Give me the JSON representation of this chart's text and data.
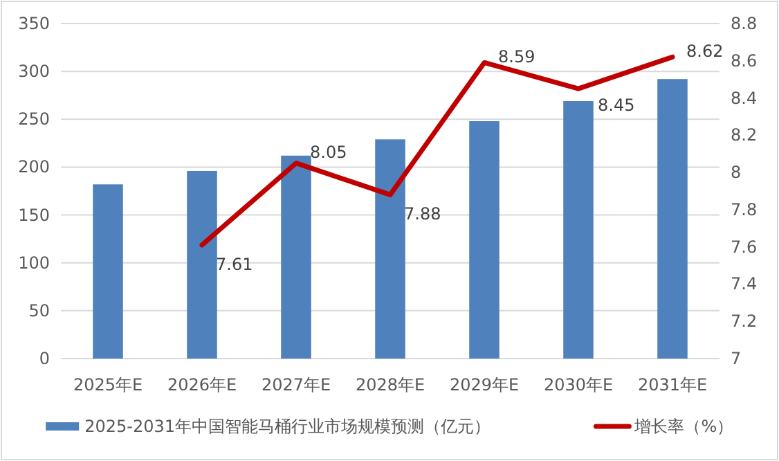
{
  "chart_data": {
    "type": "bar",
    "categories": [
      "2025年E",
      "2026年E",
      "2027年E",
      "2028年E",
      "2029年E",
      "2030年E",
      "2031年E"
    ],
    "series": [
      {
        "name": "2025-2031年中国智能马桶行业市场规模预测（亿元）",
        "color": "#4f81bd",
        "values": [
          182,
          196,
          212,
          229,
          248,
          269,
          292
        ]
      },
      {
        "name": "增长率（%）",
        "type": "line",
        "axis": "y2",
        "color": "#c00000",
        "values": [
          null,
          7.61,
          8.05,
          7.88,
          8.59,
          8.45,
          8.62
        ],
        "value_labels": [
          null,
          "7.61",
          "8.05",
          "7.88",
          "8.59",
          "8.45",
          "8.62"
        ]
      }
    ],
    "ylim": [
      0,
      350
    ],
    "yticks": [
      0,
      50,
      100,
      150,
      200,
      250,
      300,
      350
    ],
    "y2lim": [
      7,
      8.8
    ],
    "y2ticks": [
      7,
      7.2,
      7.4,
      7.6,
      7.8,
      8,
      8.2,
      8.4,
      8.6,
      8.8
    ],
    "grid": "y",
    "legend": "bottom",
    "marker": "none",
    "line_style": "solid"
  }
}
